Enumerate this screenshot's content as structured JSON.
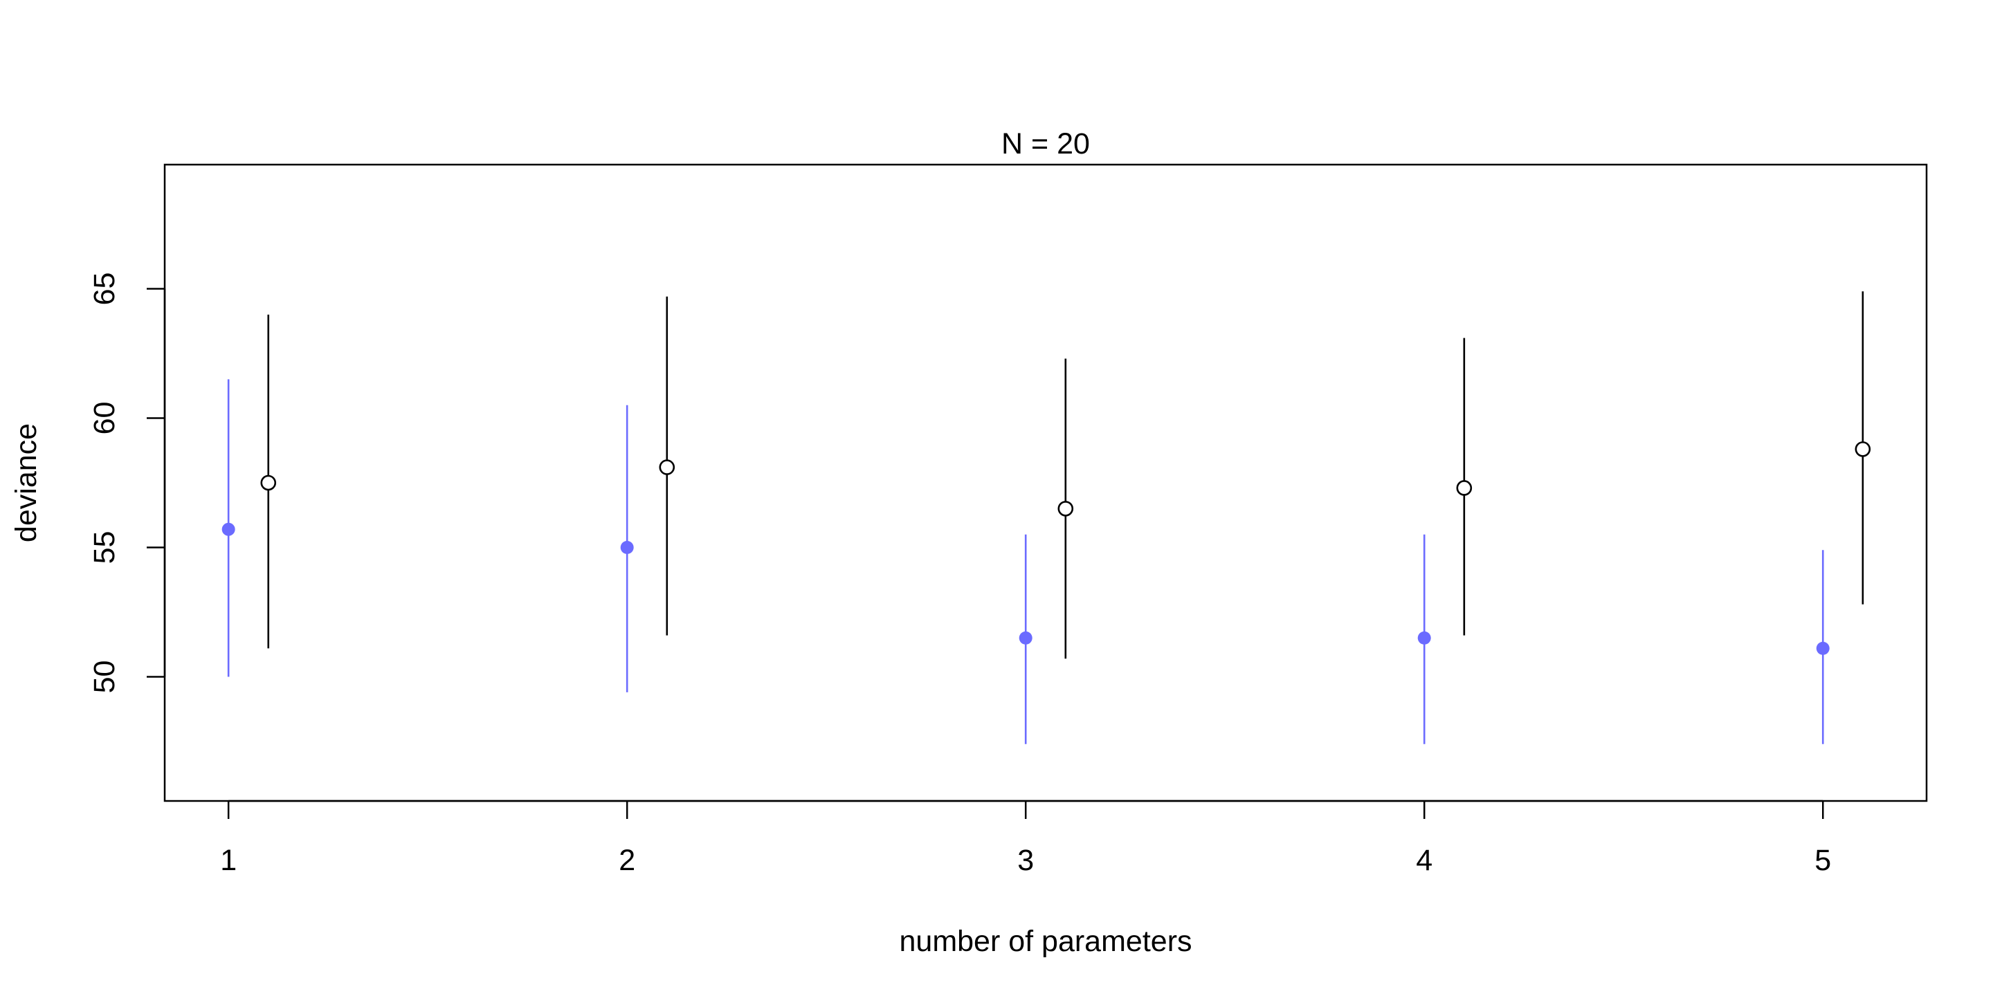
{
  "chart_data": {
    "type": "scatter",
    "title": "N = 20",
    "xlabel": "number of parameters",
    "ylabel": "deviance",
    "xlim": [
      0.84,
      5.26
    ],
    "ylim": [
      45.2,
      69.8
    ],
    "x_ticks": [
      "1",
      "2",
      "3",
      "4",
      "5"
    ],
    "y_ticks": [
      "50",
      "55",
      "60",
      "65"
    ],
    "grid": false,
    "series": [
      {
        "color": "#6b6bff",
        "marker": "filled-circle",
        "points": [
          {
            "x": 1,
            "y": 55.7,
            "low": 50.0,
            "high": 61.5
          },
          {
            "x": 2,
            "y": 55.0,
            "low": 49.4,
            "high": 60.5
          },
          {
            "x": 3,
            "y": 51.5,
            "low": 47.4,
            "high": 55.5
          },
          {
            "x": 4,
            "y": 51.5,
            "low": 47.4,
            "high": 55.5
          },
          {
            "x": 5,
            "y": 51.1,
            "low": 47.4,
            "high": 54.9
          }
        ]
      },
      {
        "color": "#000000",
        "marker": "open-circle",
        "points": [
          {
            "x": 1.1,
            "y": 57.5,
            "low": 51.1,
            "high": 64.0
          },
          {
            "x": 2.1,
            "y": 58.1,
            "low": 51.6,
            "high": 64.7
          },
          {
            "x": 3.1,
            "y": 56.5,
            "low": 50.7,
            "high": 62.3
          },
          {
            "x": 4.1,
            "y": 57.3,
            "low": 51.6,
            "high": 63.1
          },
          {
            "x": 5.1,
            "y": 58.8,
            "low": 52.8,
            "high": 64.9
          }
        ]
      }
    ]
  }
}
